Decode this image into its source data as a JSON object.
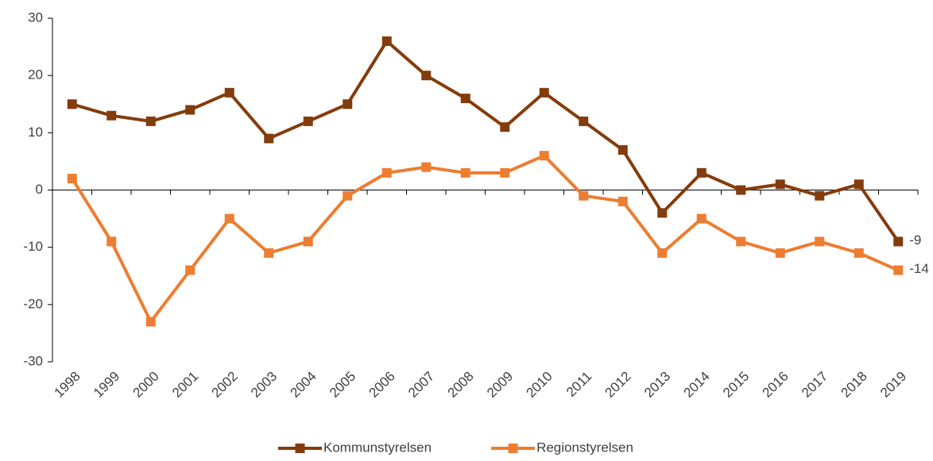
{
  "chart_data": {
    "type": "line",
    "categories": [
      "1998",
      "1999",
      "2000",
      "2001",
      "2002",
      "2003",
      "2004",
      "2005",
      "2006",
      "2007",
      "2008",
      "2009",
      "2010",
      "2011",
      "2012",
      "2013",
      "2014",
      "2015",
      "2016",
      "2017",
      "2018",
      "2019"
    ],
    "series": [
      {
        "name": "Kommunstyrelsen",
        "color": "#843c0c",
        "values": [
          15,
          13,
          12,
          14,
          17,
          9,
          12,
          15,
          26,
          20,
          16,
          11,
          17,
          12,
          7,
          -4,
          3,
          0,
          1,
          -1,
          1,
          -9
        ]
      },
      {
        "name": "Regionstyrelsen",
        "color": "#ed7d31",
        "values": [
          2,
          -9,
          -23,
          -14,
          -5,
          -11,
          -9,
          -1,
          3,
          4,
          3,
          3,
          6,
          -1,
          -2,
          -11,
          -5,
          -9,
          -11,
          -9,
          -11,
          -14
        ]
      }
    ],
    "ylim": [
      -30,
      30
    ],
    "yticks": [
      -30,
      -20,
      -10,
      0,
      10,
      20,
      30
    ],
    "grid": false,
    "data_labels": "last",
    "legend": "bottom"
  }
}
